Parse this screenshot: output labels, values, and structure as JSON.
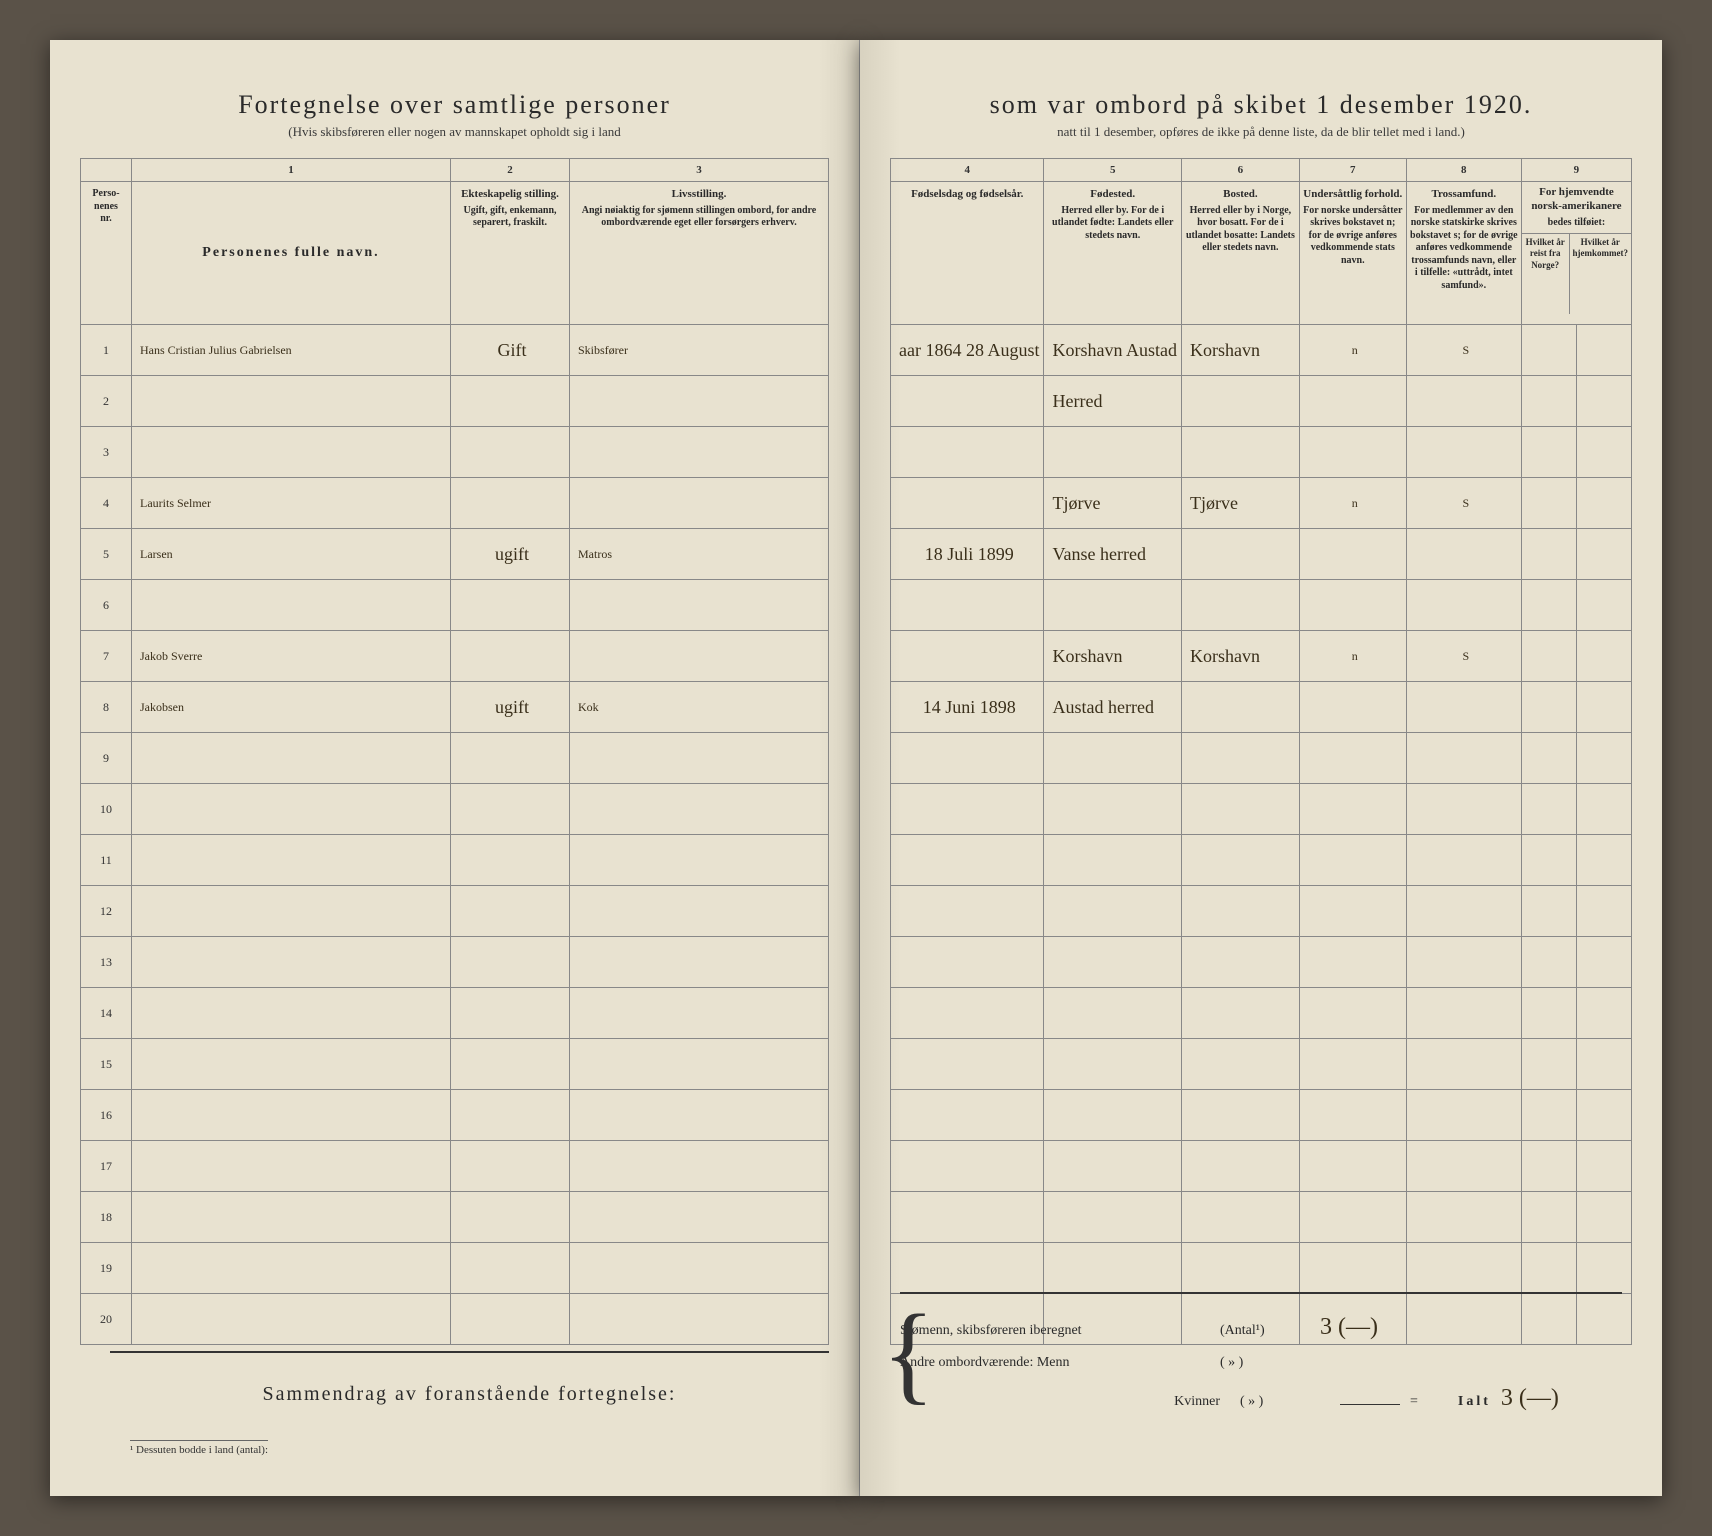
{
  "header": {
    "title_left": "Fortegnelse over samtlige personer",
    "title_right": "som var ombord på skibet 1 desember 1920.",
    "subtitle_left": "(Hvis skibsføreren eller nogen av mannskapet opholdt sig i land",
    "subtitle_right": "natt til 1 desember, opføres de ikke på denne liste, da de blir tellet med i land.)"
  },
  "columns_left": {
    "c0": {
      "num": "",
      "title": "Perso-\nnenes\nnr."
    },
    "c1": {
      "num": "1",
      "title": "Personenes fulle navn."
    },
    "c2": {
      "num": "2",
      "title": "Ekteskapelig stilling.",
      "sub": "Ugift, gift, enkemann, separert, fraskilt."
    },
    "c3": {
      "num": "3",
      "title": "Livsstilling.",
      "sub": "Angi nøiaktig for sjømenn stillingen ombord, for andre ombordværende eget eller forsørgers erhverv."
    }
  },
  "columns_right": {
    "c4": {
      "num": "4",
      "title": "Fødselsdag og fødselsår."
    },
    "c5": {
      "num": "5",
      "title": "Fødested.",
      "sub": "Herred eller by. For de i utlandet fødte: Landets eller stedets navn."
    },
    "c6": {
      "num": "6",
      "title": "Bosted.",
      "sub": "Herred eller by i Norge, hvor bosatt. For de i utlandet bosatte: Landets eller stedets navn."
    },
    "c7": {
      "num": "7",
      "title": "Undersåttlig forhold.",
      "sub": "For norske undersåtter skrives bokstavet n; for de øvrige anføres vedkommende stats navn."
    },
    "c8": {
      "num": "8",
      "title": "Trossamfund.",
      "sub": "For medlemmer av den norske statskirke skrives bokstavet s; for de øvrige anføres vedkommende trossamfunds navn, eller i tilfelle: «uttrådt, intet samfund»."
    },
    "c9": {
      "num": "9",
      "title": "For hjemvendte norsk-amerikanere",
      "sub": "bedes tilføiet:",
      "sub2a": "Hvilket år reist fra Norge?",
      "sub2b": "Hvilket år hjemkommet?"
    }
  },
  "rows": [
    {
      "n": "1",
      "name": "Hans Cristian Julius Gabrielsen",
      "marital": "Gift",
      "occ": "Skibsfører",
      "dob": "aar 1864 28 August",
      "birthplace": "Korshavn Austad",
      "residence": "Korshavn",
      "nat": "n",
      "rel": "S"
    },
    {
      "n": "2",
      "name": "",
      "marital": "",
      "occ": "",
      "dob": "",
      "birthplace": "Herred",
      "residence": "",
      "nat": "",
      "rel": ""
    },
    {
      "n": "3"
    },
    {
      "n": "4",
      "name": "Laurits Selmer",
      "marital": "",
      "occ": "",
      "dob": "",
      "birthplace": "Tjørve",
      "residence": "Tjørve",
      "nat": "n",
      "rel": "S"
    },
    {
      "n": "5",
      "name": "Larsen",
      "marital": "ugift",
      "occ": "Matros",
      "dob": "18 Juli 1899",
      "birthplace": "Vanse herred",
      "residence": "",
      "nat": "",
      "rel": ""
    },
    {
      "n": "6"
    },
    {
      "n": "7",
      "name": "Jakob Sverre",
      "marital": "",
      "occ": "",
      "dob": "",
      "birthplace": "Korshavn",
      "residence": "Korshavn",
      "nat": "n",
      "rel": "S"
    },
    {
      "n": "8",
      "name": "Jakobsen",
      "marital": "ugift",
      "occ": "Kok",
      "dob": "14 Juni 1898",
      "birthplace": "Austad herred",
      "residence": "",
      "nat": "",
      "rel": ""
    },
    {
      "n": "9"
    },
    {
      "n": "10"
    },
    {
      "n": "11"
    },
    {
      "n": "12"
    },
    {
      "n": "13"
    },
    {
      "n": "14"
    },
    {
      "n": "15"
    },
    {
      "n": "16"
    },
    {
      "n": "17"
    },
    {
      "n": "18"
    },
    {
      "n": "19"
    },
    {
      "n": "20"
    }
  ],
  "summary": {
    "heading": "Sammendrag av foranstående fortegnelse:",
    "line1_label": "Sjømenn, skibsføreren iberegnet",
    "line1_paren": "(Antal¹)",
    "line1_val": "3 (—)",
    "line2_label": "Andre ombordværende: Menn",
    "line2_paren": "(  »  )",
    "line3_label": "Kvinner",
    "line3_paren": "(  »  )",
    "ialt_label": "Ialt",
    "ialt_val": "3 (—)"
  },
  "footnote": "¹  Dessuten bodde i land (antal):"
}
